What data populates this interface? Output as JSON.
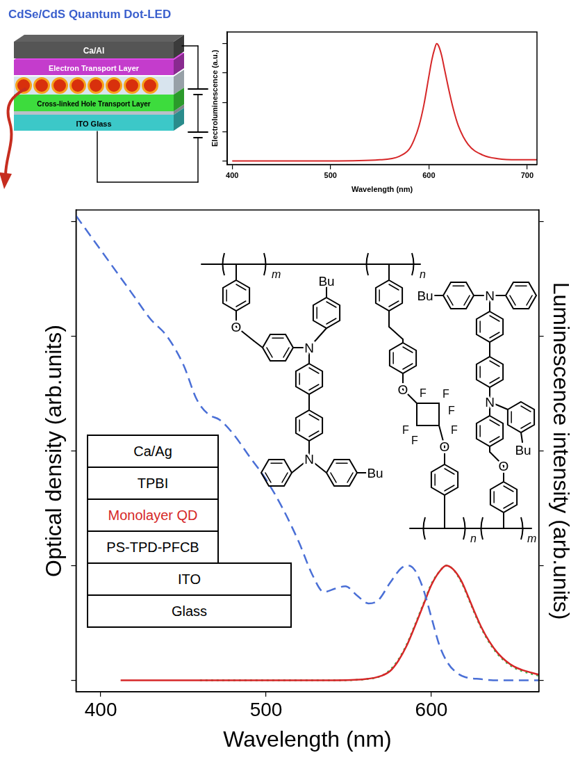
{
  "title": "CdSe/CdS Quantum Dot-LED",
  "device": {
    "layers": [
      "Ca/Al",
      "Electron Transport Layer",
      "Cross-linked Hole Transport Layer",
      "ITO Glass"
    ]
  },
  "chart_data": [
    {
      "type": "line",
      "x_label": "Wavelength (nm)",
      "y_label": "Electroluminescence (a.u.)",
      "x": [
        400,
        450,
        500,
        550,
        570,
        580,
        585,
        590,
        595,
        600,
        603,
        606,
        608,
        610,
        613,
        616,
        620,
        625,
        630,
        640,
        655,
        670,
        690,
        710
      ],
      "values": [
        0,
        0,
        0,
        0.01,
        0.04,
        0.1,
        0.18,
        0.3,
        0.48,
        0.72,
        0.86,
        0.96,
        1.0,
        0.98,
        0.9,
        0.78,
        0.62,
        0.44,
        0.3,
        0.14,
        0.05,
        0.02,
        0.01,
        0.01
      ],
      "color": "#d62728",
      "xlim": [
        395,
        710
      ],
      "xticks": [
        400,
        500,
        600,
        700
      ],
      "ylim": [
        -0.03,
        1.1
      ],
      "yticks": [
        0,
        0.25,
        0.5,
        0.75,
        1
      ],
      "tick_labels": "x",
      "grid": false
    },
    {
      "type": "line",
      "x_label": "Wavelength (nm)",
      "y_label": "Optical density (arb.units)",
      "y2_label": "Luminescence intensity (arb.units)",
      "xlim": [
        385,
        665
      ],
      "xticks": [
        400,
        500,
        600
      ],
      "ylim": [
        -0.1,
        4.1
      ],
      "yticks": [
        0,
        1,
        2,
        3,
        4
      ],
      "y2lim": [
        -0.1,
        4.1
      ],
      "y2ticks": [
        0,
        1,
        2,
        3,
        4
      ],
      "tick_labels": "x",
      "grid": false,
      "series": [
        {
          "color": "#4a6fd6",
          "line_style": "dashed",
          "x": [
            385,
            390,
            400,
            410,
            420,
            430,
            440,
            450,
            458,
            465,
            472,
            480,
            490,
            500,
            510,
            520,
            528,
            535,
            542,
            548,
            555,
            562,
            568,
            575,
            582,
            586,
            590,
            595,
            600,
            605,
            610,
            615,
            620,
            630,
            640,
            650,
            665
          ],
          "values": [
            4.05,
            3.95,
            3.75,
            3.55,
            3.35,
            3.15,
            3.0,
            2.75,
            2.45,
            2.32,
            2.27,
            2.15,
            1.95,
            1.75,
            1.5,
            1.2,
            0.92,
            0.77,
            0.8,
            0.82,
            0.74,
            0.67,
            0.7,
            0.85,
            0.98,
            1.0,
            0.96,
            0.8,
            0.55,
            0.3,
            0.15,
            0.07,
            0.03,
            0.01,
            0,
            0,
            0
          ]
        },
        {
          "color": "#d62728",
          "line_style": "solid",
          "axis": "y2",
          "x": [
            412,
            460,
            500,
            540,
            560,
            570,
            575,
            580,
            585,
            590,
            595,
            600,
            605,
            609,
            613,
            618,
            622,
            626,
            630,
            635,
            640,
            645,
            650,
            655,
            665
          ],
          "values": [
            0,
            0,
            0,
            0,
            0.01,
            0.04,
            0.08,
            0.17,
            0.3,
            0.47,
            0.65,
            0.83,
            0.95,
            1.0,
            0.97,
            0.87,
            0.74,
            0.6,
            0.47,
            0.34,
            0.24,
            0.17,
            0.12,
            0.09,
            0.05
          ]
        },
        {
          "color": "#3cb44b",
          "line_style": "dotted",
          "axis": "y2",
          "x": [
            460,
            500,
            540,
            560,
            570,
            575,
            580,
            585,
            590,
            595,
            600,
            605,
            609,
            613,
            618,
            622,
            626,
            630,
            635,
            640,
            645,
            650,
            655,
            665
          ],
          "values": [
            0,
            0,
            0,
            0.01,
            0.04,
            0.09,
            0.18,
            0.31,
            0.48,
            0.66,
            0.84,
            0.95,
            1.0,
            0.97,
            0.86,
            0.73,
            0.59,
            0.46,
            0.33,
            0.23,
            0.16,
            0.11,
            0.08,
            0.04
          ]
        }
      ]
    }
  ],
  "layer_stack": [
    {
      "label": "Ca/Ag"
    },
    {
      "label": "TPBI"
    },
    {
      "label": "Monolayer QD",
      "color": "#d62728"
    },
    {
      "label": "PS-TPD-PFCB"
    },
    {
      "label": "ITO"
    },
    {
      "label": "Glass"
    }
  ],
  "structure": {
    "subscripts": [
      "m",
      "n"
    ],
    "atoms": [
      "O",
      "N",
      "Bu",
      "F"
    ]
  }
}
